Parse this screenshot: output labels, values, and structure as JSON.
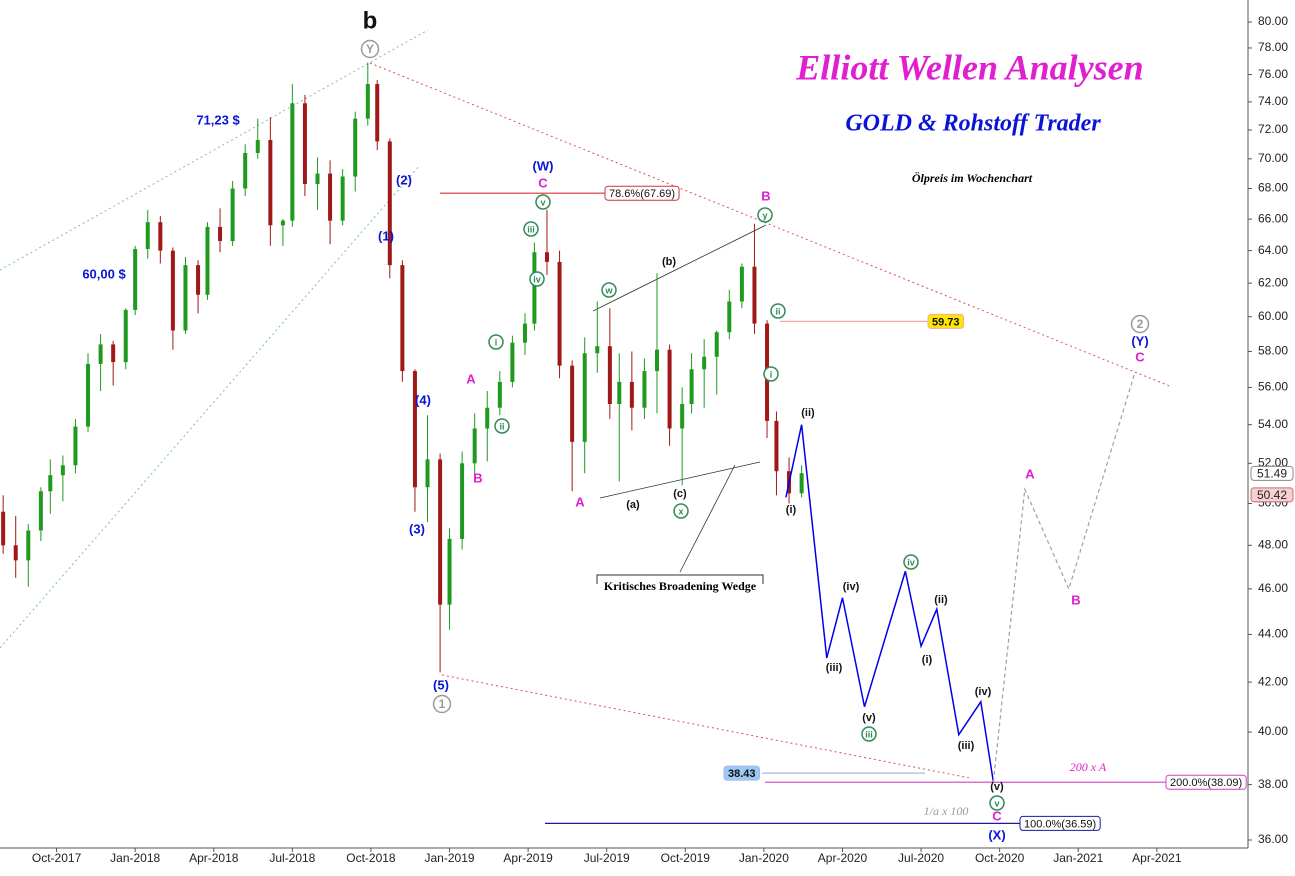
{
  "chart_data": {
    "type": "candlestick",
    "title": "Elliott Wellen Analysen",
    "subtitle": "GOLD & Rohstoff Trader",
    "note": "Ölpreis im Wochenchart",
    "wedge_label": "Kritisches Broadening Wedge",
    "log_scale": true,
    "grid": false,
    "up_color": "#1e9a1e",
    "down_color": "#a01818",
    "xlim": [
      2017.57,
      2021.54
    ],
    "xticks": [
      {
        "value": 2017.75,
        "label": "Oct-2017"
      },
      {
        "value": 2018.0,
        "label": "Jan-2018"
      },
      {
        "value": 2018.25,
        "label": "Apr-2018"
      },
      {
        "value": 2018.5,
        "label": "Jul-2018"
      },
      {
        "value": 2018.75,
        "label": "Oct-2018"
      },
      {
        "value": 2019.0,
        "label": "Jan-2019"
      },
      {
        "value": 2019.25,
        "label": "Apr-2019"
      },
      {
        "value": 2019.5,
        "label": "Jul-2019"
      },
      {
        "value": 2019.75,
        "label": "Oct-2019"
      },
      {
        "value": 2020.0,
        "label": "Jan-2020"
      },
      {
        "value": 2020.25,
        "label": "Apr-2020"
      },
      {
        "value": 2020.5,
        "label": "Jul-2020"
      },
      {
        "value": 2020.75,
        "label": "Oct-2020"
      },
      {
        "value": 2021.0,
        "label": "Jan-2021"
      },
      {
        "value": 2021.25,
        "label": "Apr-2021"
      }
    ],
    "ylim": [
      35.72,
      81.74
    ],
    "yticks": [
      {
        "value": 36,
        "label": "36.00"
      },
      {
        "value": 38,
        "label": "38.00"
      },
      {
        "value": 40,
        "label": "40.00"
      },
      {
        "value": 42,
        "label": "42.00"
      },
      {
        "value": 44,
        "label": "44.00"
      },
      {
        "value": 46,
        "label": "46.00"
      },
      {
        "value": 48,
        "label": "48.00"
      },
      {
        "value": 50,
        "label": "50.00"
      },
      {
        "value": 52,
        "label": "52.00"
      },
      {
        "value": 54,
        "label": "54.00"
      },
      {
        "value": 56,
        "label": "56.00"
      },
      {
        "value": 58,
        "label": "58.00"
      },
      {
        "value": 60,
        "label": "60.00"
      },
      {
        "value": 62,
        "label": "62.00"
      },
      {
        "value": 64,
        "label": "64.00"
      },
      {
        "value": 66,
        "label": "66.00"
      },
      {
        "value": 68,
        "label": "68.00"
      },
      {
        "value": 70,
        "label": "70.00"
      },
      {
        "value": 72,
        "label": "72.00"
      },
      {
        "value": 74,
        "label": "74.00"
      },
      {
        "value": 76,
        "label": "76.00"
      },
      {
        "value": 78,
        "label": "78.00"
      },
      {
        "value": 80,
        "label": "80.00"
      }
    ],
    "candles": {
      "x": [
        2017.58,
        2017.62,
        2017.66,
        2017.7,
        2017.73,
        2017.77,
        2017.81,
        2017.85,
        2017.89,
        2017.93,
        2017.97,
        2018.0,
        2018.04,
        2018.08,
        2018.12,
        2018.16,
        2018.2,
        2018.23,
        2018.27,
        2018.31,
        2018.35,
        2018.39,
        2018.43,
        2018.47,
        2018.5,
        2018.54,
        2018.58,
        2018.62,
        2018.66,
        2018.7,
        2018.74,
        2018.77,
        2018.81,
        2018.85,
        2018.89,
        2018.93,
        2018.97,
        2019.0,
        2019.04,
        2019.08,
        2019.12,
        2019.16,
        2019.2,
        2019.24,
        2019.27,
        2019.31,
        2019.35,
        2019.39,
        2019.43,
        2019.47,
        2019.51,
        2019.54,
        2019.58,
        2019.62,
        2019.66,
        2019.7,
        2019.74,
        2019.77,
        2019.81,
        2019.85,
        2019.89,
        2019.93,
        2019.97,
        2020.01,
        2020.04,
        2020.08,
        2020.12
      ],
      "open": [
        49.6,
        48.0,
        47.3,
        48.7,
        50.6,
        51.4,
        51.9,
        53.9,
        57.3,
        58.4,
        57.4,
        60.4,
        64.1,
        65.8,
        64.0,
        59.2,
        63.1,
        61.3,
        65.5,
        64.6,
        68.0,
        70.4,
        71.3,
        65.6,
        65.9,
        73.9,
        68.3,
        69.0,
        65.9,
        68.8,
        72.8,
        75.3,
        71.2,
        63.1,
        56.9,
        50.8,
        52.2,
        45.3,
        48.3,
        52.0,
        53.8,
        54.9,
        56.3,
        58.5,
        59.6,
        63.9,
        63.3,
        57.2,
        53.1,
        57.9,
        58.3,
        55.1,
        56.3,
        54.9,
        56.9,
        58.1,
        53.8,
        55.1,
        57.0,
        57.7,
        59.1,
        60.9,
        63.0,
        59.6,
        54.2,
        51.6,
        50.5
      ],
      "high": [
        50.4,
        49.4,
        49.0,
        50.8,
        52.2,
        52.4,
        54.3,
        57.9,
        59.0,
        58.6,
        60.5,
        64.3,
        66.6,
        66.2,
        64.2,
        63.6,
        63.4,
        65.8,
        66.7,
        68.5,
        71.0,
        72.8,
        72.9,
        66.0,
        75.3,
        74.5,
        70.1,
        69.9,
        69.3,
        73.3,
        76.9,
        75.6,
        71.4,
        63.4,
        57.0,
        54.5,
        52.5,
        48.8,
        52.6,
        54.6,
        55.8,
        56.9,
        58.9,
        60.2,
        64.5,
        66.6,
        64.0,
        57.5,
        58.8,
        60.9,
        60.5,
        57.9,
        58.0,
        57.6,
        62.6,
        58.4,
        56.0,
        57.9,
        58.7,
        59.2,
        61.6,
        63.2,
        65.7,
        59.8,
        54.7,
        52.3,
        51.9
      ],
      "low": [
        47.6,
        46.5,
        46.1,
        48.2,
        49.5,
        50.1,
        51.5,
        53.6,
        55.8,
        56.1,
        57.0,
        60.1,
        63.5,
        63.2,
        58.1,
        59.0,
        60.2,
        61.0,
        63.9,
        64.3,
        67.5,
        70.0,
        64.3,
        64.3,
        65.5,
        67.5,
        66.6,
        64.4,
        65.6,
        67.8,
        72.3,
        70.6,
        62.3,
        56.3,
        49.6,
        49.1,
        42.4,
        44.2,
        47.8,
        51.4,
        52.1,
        54.5,
        56.0,
        57.8,
        59.2,
        62.5,
        56.5,
        50.6,
        51.5,
        56.8,
        54.3,
        51.1,
        53.7,
        54.3,
        54.6,
        52.9,
        50.9,
        54.6,
        54.9,
        55.6,
        58.7,
        60.5,
        59.0,
        53.3,
        50.4,
        50.0,
        50.3
      ],
      "close": [
        48.0,
        47.3,
        48.7,
        50.6,
        51.4,
        51.9,
        53.9,
        57.3,
        58.4,
        57.4,
        60.4,
        64.1,
        65.8,
        64.0,
        59.2,
        63.1,
        61.3,
        65.5,
        64.6,
        68.0,
        70.4,
        71.3,
        65.6,
        65.9,
        73.9,
        68.3,
        69.0,
        65.9,
        68.8,
        72.8,
        75.3,
        71.2,
        63.1,
        56.9,
        50.8,
        52.2,
        45.3,
        48.3,
        52.0,
        53.8,
        54.9,
        56.3,
        58.5,
        59.6,
        63.9,
        63.3,
        57.2,
        53.1,
        57.9,
        58.3,
        55.1,
        56.3,
        54.9,
        56.9,
        58.1,
        53.8,
        55.1,
        57.0,
        57.7,
        59.1,
        60.9,
        63.0,
        59.6,
        54.2,
        51.6,
        50.5,
        51.5
      ]
    },
    "projections": [
      {
        "color": "#0000ee",
        "dashed": false,
        "x": [
          2020.07,
          2020.12,
          2020.2,
          2020.25,
          2020.32,
          2020.45,
          2020.5,
          2020.55,
          2020.62,
          2020.69,
          2020.73
        ],
        "values": [
          50.3,
          54.0,
          43.0,
          45.6,
          41.0,
          46.8,
          43.5,
          45.1,
          39.9,
          41.2,
          38.1
        ]
      },
      {
        "color": "#a0a0a0",
        "dashed": true,
        "x": [
          2020.73,
          2020.83,
          2020.97,
          2021.18
        ],
        "values": [
          38.1,
          50.7,
          46.0,
          56.8
        ]
      }
    ],
    "levels": [
      {
        "value": 67.69,
        "label": "78.6%(67.69)",
        "color": "#d83030",
        "fill": "#ffffff"
      },
      {
        "value": 59.73,
        "color": "#f0a8a8",
        "fill": "#ffe600"
      },
      {
        "value": 38.43,
        "color": "#a8b8e0",
        "fill": "#9cc8f5"
      },
      {
        "value": 38.09,
        "label": "200.0%(38.09)",
        "color": "#d040c0",
        "fill": "#ffffff"
      },
      {
        "value": 36.59,
        "label": "100.0%(36.59)",
        "color": "#1a1aa0",
        "fill": "#ffffff"
      }
    ],
    "price_tags": [
      51.49,
      50.42
    ],
    "label_colors": {
      "blue": "#0a14d8",
      "magenta": "#e020d0",
      "black": "#111111",
      "grey": "#9a9a9a",
      "green": "#2e8b57"
    },
    "annotations": [
      {
        "text": "b",
        "style": "big"
      },
      {
        "text": "Y",
        "style": "circle-grey"
      },
      {
        "text": "71,23 $",
        "style": "blue"
      },
      {
        "text": "60,00 $",
        "style": "blue"
      },
      {
        "text": "(2)",
        "style": "blue"
      },
      {
        "text": "(1)",
        "style": "blue"
      },
      {
        "text": "(4)",
        "style": "blue"
      },
      {
        "text": "(3)",
        "style": "blue"
      },
      {
        "text": "(5)",
        "style": "blue"
      },
      {
        "text": "1",
        "style": "circle-grey"
      },
      {
        "text": "(W)",
        "style": "blue"
      },
      {
        "text": "C",
        "style": "magenta"
      },
      {
        "text": "v",
        "style": "circle-green"
      },
      {
        "text": "iii",
        "style": "circle-green"
      },
      {
        "text": "iv",
        "style": "circle-green"
      },
      {
        "text": "i",
        "style": "circle-green"
      },
      {
        "text": "ii",
        "style": "circle-green"
      },
      {
        "text": "A",
        "style": "magenta"
      },
      {
        "text": "B",
        "style": "magenta"
      },
      {
        "text": "A",
        "style": "magenta"
      },
      {
        "text": "w",
        "style": "circle-green"
      },
      {
        "text": "(b)",
        "style": "black"
      },
      {
        "text": "(a)",
        "style": "black"
      },
      {
        "text": "(c)",
        "style": "black"
      },
      {
        "text": "x",
        "style": "circle-green"
      },
      {
        "text": "B",
        "style": "magenta"
      },
      {
        "text": "y",
        "style": "circle-green"
      },
      {
        "text": "ii",
        "style": "circle-green"
      },
      {
        "text": "i",
        "style": "circle-green"
      },
      {
        "text": "(ii)",
        "style": "black"
      },
      {
        "text": "(i)",
        "style": "black"
      },
      {
        "text": "(iii)",
        "style": "black"
      },
      {
        "text": "(iv)",
        "style": "black"
      },
      {
        "text": "(v)",
        "style": "black"
      },
      {
        "text": "iii",
        "style": "circle-green"
      },
      {
        "text": "iv",
        "style": "circle-green"
      },
      {
        "text": "(ii)",
        "style": "black"
      },
      {
        "text": "(i)",
        "style": "black"
      },
      {
        "text": "(iii)",
        "style": "black"
      },
      {
        "text": "(iv)",
        "style": "black"
      },
      {
        "text": "(v)",
        "style": "black"
      },
      {
        "text": "v",
        "style": "circle-green"
      },
      {
        "text": "C",
        "style": "magenta"
      },
      {
        "text": "(X)",
        "style": "blue"
      },
      {
        "text": "A",
        "style": "magenta"
      },
      {
        "text": "B",
        "style": "magenta"
      },
      {
        "text": "2",
        "style": "circle-grey"
      },
      {
        "text": "(Y)",
        "style": "blue"
      },
      {
        "text": "C",
        "style": "magenta"
      },
      {
        "text": "200 x A",
        "style": "italic-magenta"
      },
      {
        "text": "1/a x 100",
        "style": "italic-grey"
      }
    ]
  }
}
